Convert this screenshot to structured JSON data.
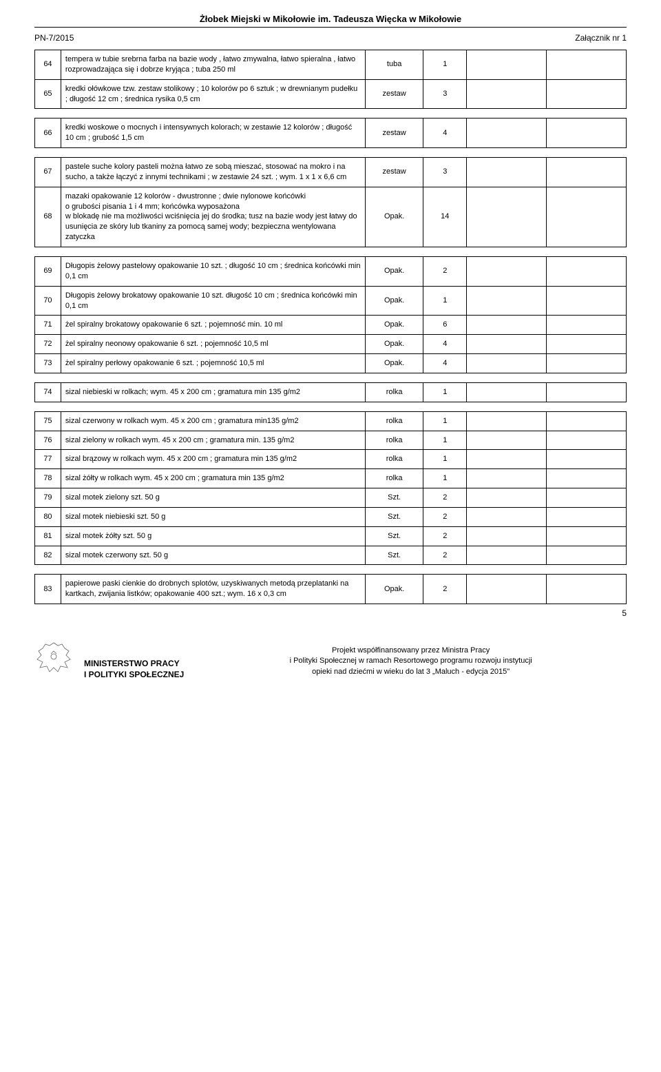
{
  "header": {
    "title": "Żłobek Miejski w Mikołowie im. Tadeusza Więcka w Mikołowie",
    "doc_ref": "PN-7/2015",
    "attachment": "Załącznik nr 1"
  },
  "rows": [
    {
      "num": "64",
      "desc": "tempera w tubie srebrna farba na bazie wody , łatwo zmywalna, łatwo spieralna , łatwo rozprowadzająca się i dobrze kryjąca ; tuba 250 ml",
      "unit": "tuba",
      "qty": "1",
      "gap_after": false
    },
    {
      "num": "65",
      "desc": "kredki ołówkowe  tzw. zestaw stolikowy ; 10 kolorów po 6 sztuk ; w drewnianym pudełku ;  długość 12 cm ; średnica rysika 0,5 cm",
      "unit": "zestaw",
      "qty": "3",
      "gap_after": true
    },
    {
      "num": "66",
      "desc": "kredki woskowe o mocnych i intensywnych kolorach; w zestawie 12 kolorów ;  długość 10 cm ;  grubość 1,5 cm",
      "unit": "zestaw",
      "qty": "4",
      "gap_after": true
    },
    {
      "num": "67",
      "desc": "pastele suche kolory pasteli można łatwo ze sobą mieszać, stosować na mokro i na sucho, a także łączyć z innymi technikami ; w zestawie 24 szt. ;  wym. 1 x 1 x 6,6 cm",
      "unit": "zestaw",
      "qty": "3",
      "gap_after": false
    },
    {
      "num": "68",
      "desc": "mazaki  opakowanie 12 kolorów - dwustronne ; dwie nylonowe końcówki\no grubości pisania 1 i 4 mm; końcówka wyposażona\nw blokadę nie ma możliwości wciśnięcia jej do środka; tusz na bazie wody jest łatwy do usunięcia ze skóry lub tkaniny za pomocą samej wody; bezpieczna wentylowana zatyczka",
      "unit": "Opak.",
      "qty": "14",
      "gap_after": true
    },
    {
      "num": "69",
      "desc": "Długopis żelowy pastelowy  opakowanie 10 szt. ; długość 10 cm ; średnica  końcówki min 0,1 cm",
      "unit": "Opak.",
      "qty": "2",
      "gap_after": false
    },
    {
      "num": "70",
      "desc": "Długopis żelowy brokatowy opakowanie 10 szt. długość 10 cm ; średnica  końcówki min 0,1 cm",
      "unit": "Opak.",
      "qty": "1",
      "gap_after": false
    },
    {
      "num": "71",
      "desc": "żel spiralny brokatowy opakowanie 6 szt. ; pojemność min. 10 ml",
      "unit": "Opak.",
      "qty": "6",
      "gap_after": false
    },
    {
      "num": "72",
      "desc": "żel spiralny neonowy opakowanie 6 szt. ; pojemność 10,5 ml",
      "unit": "Opak.",
      "qty": "4",
      "gap_after": false
    },
    {
      "num": "73",
      "desc": "żel spiralny perłowy opakowanie 6 szt. ; pojemność 10,5 ml",
      "unit": "Opak.",
      "qty": "4",
      "gap_after": true
    },
    {
      "num": "74",
      "desc": "sizal niebieski w rolkach; wym. 45 x 200 cm ; gramatura min 135 g/m2",
      "unit": "rolka",
      "qty": "1",
      "gap_after": true
    },
    {
      "num": "75",
      "desc": "sizal czerwony w rolkach wym. 45 x 200 cm ; gramatura min135 g/m2",
      "unit": "rolka",
      "qty": "1",
      "gap_after": false
    },
    {
      "num": "76",
      "desc": "sizal zielony w rolkach wym. 45 x 200 cm ; gramatura min. 135 g/m2",
      "unit": "rolka",
      "qty": "1",
      "gap_after": false
    },
    {
      "num": "77",
      "desc": "sizal brązowy w rolkach wym. 45 x 200 cm ; gramatura min 135 g/m2",
      "unit": "rolka",
      "qty": "1",
      "gap_after": false
    },
    {
      "num": "78",
      "desc": "sizal żółty w rolkach wym. 45 x 200 cm ; gramatura min 135 g/m2",
      "unit": "rolka",
      "qty": "1",
      "gap_after": false
    },
    {
      "num": "79",
      "desc": "sizal motek  zielony szt. 50 g",
      "unit": "Szt.",
      "qty": "2",
      "gap_after": false
    },
    {
      "num": "80",
      "desc": "sizal motek niebieski szt. 50 g",
      "unit": "Szt.",
      "qty": "2",
      "gap_after": false
    },
    {
      "num": "81",
      "desc": "sizal motek żółty szt. 50 g",
      "unit": "Szt.",
      "qty": "2",
      "gap_after": false
    },
    {
      "num": "82",
      "desc": "sizal motek  czerwony szt. 50 g",
      "unit": "Szt.",
      "qty": "2",
      "gap_after": true
    },
    {
      "num": "83",
      "desc": "papierowe paski cienkie do drobnych splotów, uzyskiwanych metodą przeplatanki na kartkach, zwijania listków; opakowanie  400 szt.; wym. 16 x 0,3 cm",
      "unit": "Opak.",
      "qty": "2",
      "gap_after": false
    }
  ],
  "footer": {
    "ministry_line1": "MINISTERSTWO PRACY",
    "ministry_line2": "I POLITYKI SPOŁECZNEJ",
    "funding_line1": "Projekt współfinansowany przez Ministra Pracy",
    "funding_line2": "i Polityki Społecznej w ramach Resortowego programu rozwoju instytucji",
    "funding_line3": "opieki nad dziećmi w wieku do lat 3 „Maluch - edycja 2015\"",
    "page_num": "5"
  }
}
